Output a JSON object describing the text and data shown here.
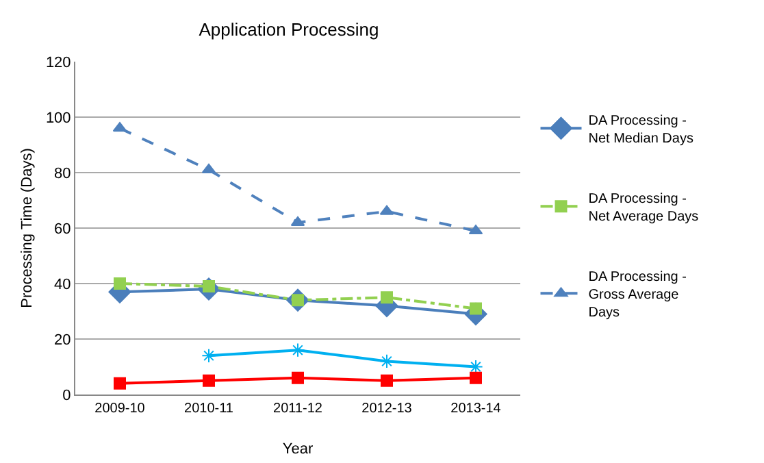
{
  "chart_data": {
    "type": "line",
    "title": "Application Processing",
    "xlabel": "Year",
    "ylabel": "Processing Time (Days)",
    "categories": [
      "2009-10",
      "2010-11",
      "2011-12",
      "2012-13",
      "2013-14"
    ],
    "series": [
      {
        "name": "DA Processing - Net Median Days",
        "color": "#4a7ebb",
        "values": [
          37,
          38,
          34,
          32,
          29
        ],
        "marker": "diamond",
        "line_style": "solid"
      },
      {
        "name": "DA Processing - Net Average Days",
        "color": "#92d050",
        "values": [
          40,
          39,
          34,
          35,
          31
        ],
        "marker": "square",
        "line_style": "dotted"
      },
      {
        "name": "DA Processing - Gross Average Days",
        "color": "#4f81bd",
        "values": [
          96,
          81,
          62,
          66,
          59
        ],
        "marker": "triangle",
        "line_style": "dashed"
      },
      {
        "color": "#00b0f0",
        "values": [
          null,
          14,
          16,
          12,
          10
        ],
        "marker": "cross",
        "line_style": "solid"
      },
      {
        "color": "#ff0000",
        "values": [
          4,
          5,
          6,
          5,
          6
        ],
        "marker": "square",
        "line_style": "solid"
      }
    ],
    "ylim": [
      0,
      120
    ],
    "yticks": [
      0,
      20,
      40,
      60,
      80,
      100,
      120
    ],
    "grid": "y",
    "legend": "right"
  }
}
